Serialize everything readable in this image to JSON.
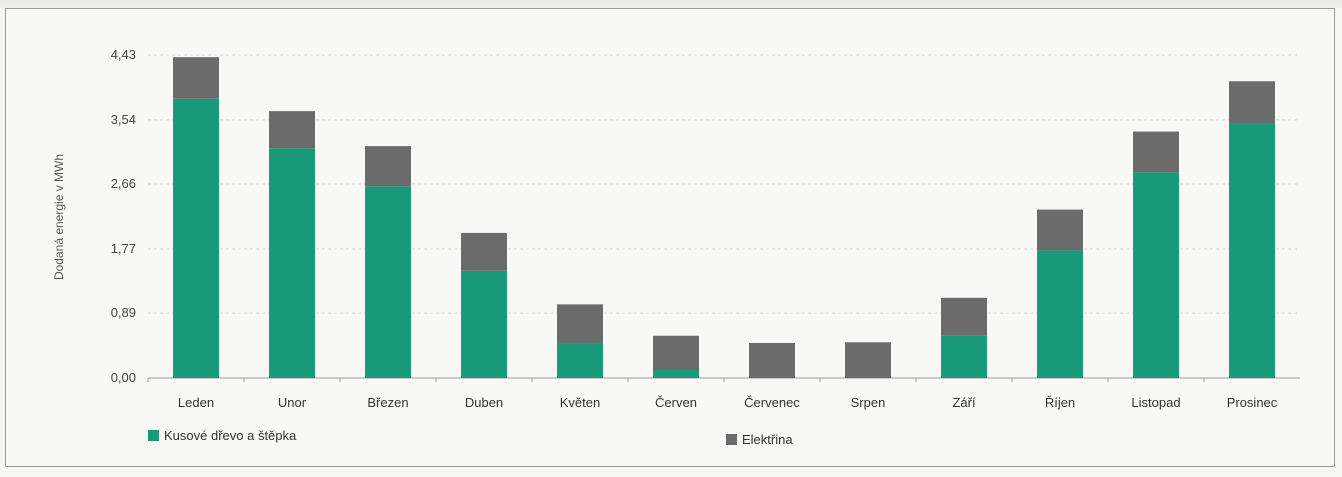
{
  "chart_data": {
    "type": "bar",
    "stacked": true,
    "title": "",
    "xlabel": "",
    "ylabel": "Dodaná energie v MWh",
    "ylim": [
      0,
      4.43
    ],
    "yticks": [
      "0,00",
      "0,89",
      "1,77",
      "2,66",
      "3,54",
      "4,43"
    ],
    "ytick_values": [
      0,
      0.89,
      1.77,
      2.66,
      3.54,
      4.43
    ],
    "grid": true,
    "legend_position": "bottom",
    "categories": [
      "Leden",
      "Unor",
      "Březen",
      "Duben",
      "Květen",
      "Červen",
      "Červenec",
      "Srpen",
      "Září",
      "Říjen",
      "Listopad",
      "Prosinec"
    ],
    "series": [
      {
        "name": "Kusové dřevo a štěpka",
        "color": "#1a9a78",
        "values": [
          3.83,
          3.15,
          2.63,
          1.47,
          0.48,
          0.11,
          0,
          0,
          0.58,
          1.75,
          2.82,
          3.49
        ]
      },
      {
        "name": "Elektřina",
        "color": "#6b6b6b",
        "values": [
          0.57,
          0.51,
          0.55,
          0.52,
          0.53,
          0.47,
          0.48,
          0.49,
          0.52,
          0.56,
          0.56,
          0.58
        ]
      }
    ]
  }
}
